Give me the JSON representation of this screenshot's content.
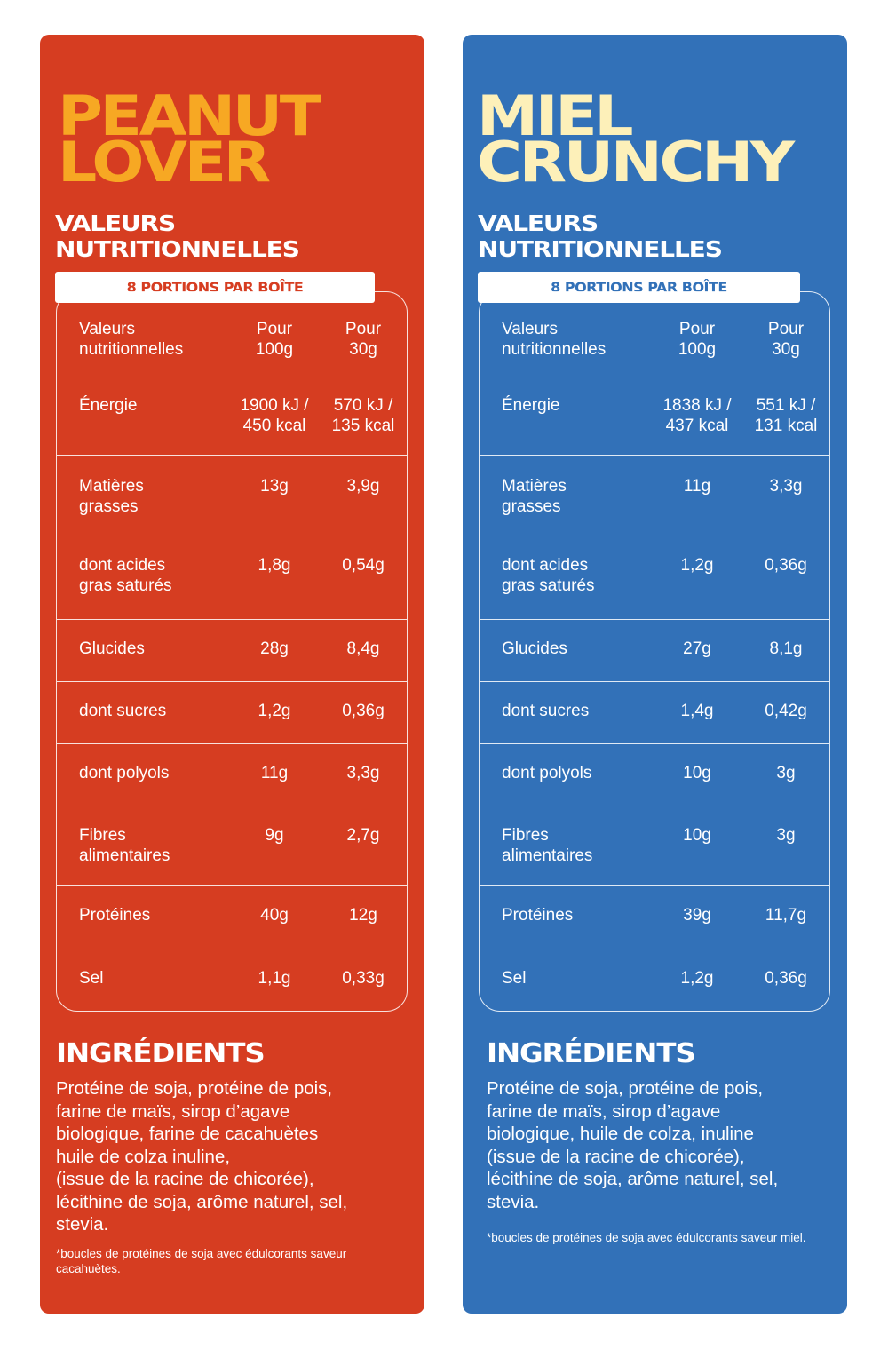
{
  "colors": {
    "left_bg": "#d63d21",
    "left_title": "#f7a823",
    "right_bg": "#3271b8",
    "right_title": "#fdf0b9"
  },
  "panels": [
    {
      "title_line1": "PEANUT",
      "title_line2": "LOVER",
      "sub_line1": "VALEURS",
      "sub_line2": "NUTRITIONNELLES",
      "portions": "8 PORTIONS PAR BOÎTE",
      "header": {
        "label": "Valeurs\nnutritionnelles",
        "per100": "Pour\n100g",
        "per30": "Pour\n30g"
      },
      "rows": [
        {
          "label": "Énergie",
          "per100": "1900 kJ /\n450 kcal",
          "per30": "570 kJ /\n135 kcal"
        },
        {
          "label": "Matières\ngrasses",
          "per100": "13g",
          "per30": "3,9g"
        },
        {
          "label": "dont acides\ngras saturés",
          "per100": "1,8g",
          "per30": "0,54g"
        },
        {
          "label": "Glucides",
          "per100": "28g",
          "per30": "8,4g"
        },
        {
          "label": "dont sucres",
          "per100": "1,2g",
          "per30": "0,36g"
        },
        {
          "label": "dont polyols",
          "per100": "11g",
          "per30": "3,3g"
        },
        {
          "label": "Fibres\nalimentaires",
          "per100": "9g",
          "per30": "2,7g"
        },
        {
          "label": "Protéines",
          "per100": "40g",
          "per30": "12g"
        },
        {
          "label": "Sel",
          "per100": "1,1g",
          "per30": "0,33g"
        }
      ],
      "ingredients_title": "INGRÉDIENTS",
      "ingredients": "Protéine de soja, protéine de pois,\nfarine de maïs, sirop d’agave\nbiologique, farine de cacahuètes\nhuile de colza  inuline,\n(issue de la racine de chicorée),\nlécithine de soja, arôme naturel, sel,\nstevia.",
      "footnote": "*boucles de protéines de soja avec édulcorants saveur cacahuètes."
    },
    {
      "title_line1": "MIEL",
      "title_line2": "CRUNCHY",
      "sub_line1": "VALEURS",
      "sub_line2": "NUTRITIONNELLES",
      "portions": "8 PORTIONS PAR BOÎTE",
      "header": {
        "label": "Valeurs\nnutritionnelles",
        "per100": "Pour\n100g",
        "per30": "Pour\n30g"
      },
      "rows": [
        {
          "label": "Énergie",
          "per100": "1838 kJ /\n437 kcal",
          "per30": "551 kJ /\n131 kcal"
        },
        {
          "label": "Matières\ngrasses",
          "per100": "11g",
          "per30": "3,3g"
        },
        {
          "label": "dont acides\ngras saturés",
          "per100": "1,2g",
          "per30": "0,36g"
        },
        {
          "label": "Glucides",
          "per100": "27g",
          "per30": "8,1g"
        },
        {
          "label": "dont sucres",
          "per100": "1,4g",
          "per30": "0,42g"
        },
        {
          "label": "dont polyols",
          "per100": "10g",
          "per30": "3g"
        },
        {
          "label": "Fibres\nalimentaires",
          "per100": "10g",
          "per30": "3g"
        },
        {
          "label": "Protéines",
          "per100": "39g",
          "per30": "11,7g"
        },
        {
          "label": "Sel",
          "per100": "1,2g",
          "per30": "0,36g"
        }
      ],
      "ingredients_title": "INGRÉDIENTS",
      "ingredients": "Protéine de soja, protéine de pois,\nfarine de maïs, sirop d’agave\nbiologique, huile de colza, inuline\n(issue de la racine de chicorée),\nlécithine de soja, arôme naturel, sel,\nstevia.",
      "footnote": "*boucles de protéines de soja avec édulcorants\nsaveur miel."
    }
  ]
}
